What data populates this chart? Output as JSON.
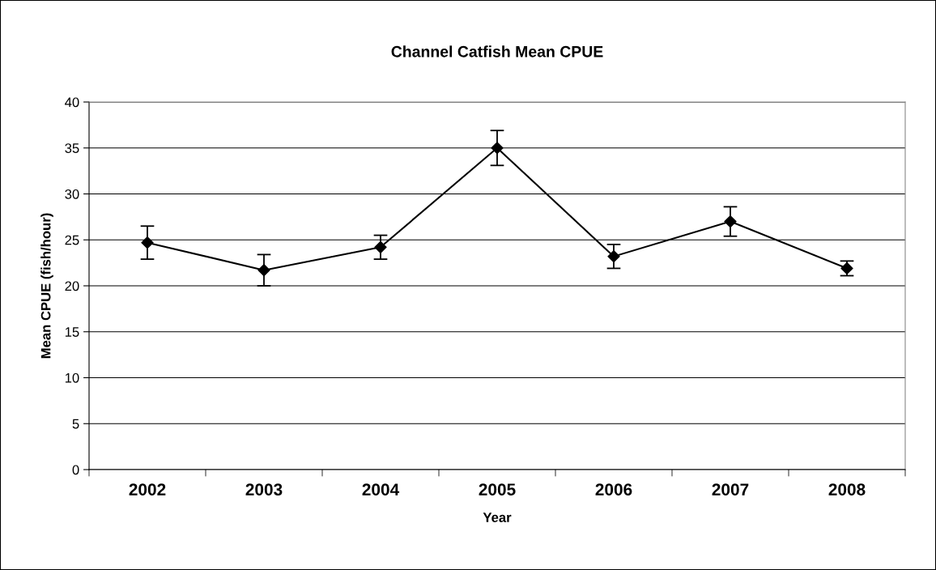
{
  "chart_data": {
    "type": "line",
    "title": "Channel Catfish Mean CPUE",
    "xlabel": "Year",
    "ylabel": "Mean CPUE (fish/hour)",
    "categories": [
      "2002",
      "2003",
      "2004",
      "2005",
      "2006",
      "2007",
      "2008"
    ],
    "series": [
      {
        "color": "#000000",
        "values": [
          24.7,
          21.7,
          24.2,
          35.0,
          23.2,
          27.0,
          21.9
        ],
        "errors": [
          1.8,
          1.7,
          1.3,
          1.9,
          1.3,
          1.6,
          0.8
        ]
      }
    ],
    "ylim": [
      0,
      40
    ],
    "yticks": [
      0,
      5,
      10,
      15,
      20,
      25,
      30,
      35,
      40
    ],
    "grid": "y",
    "legend": false,
    "marker": "diamond",
    "line_style": "solid"
  }
}
